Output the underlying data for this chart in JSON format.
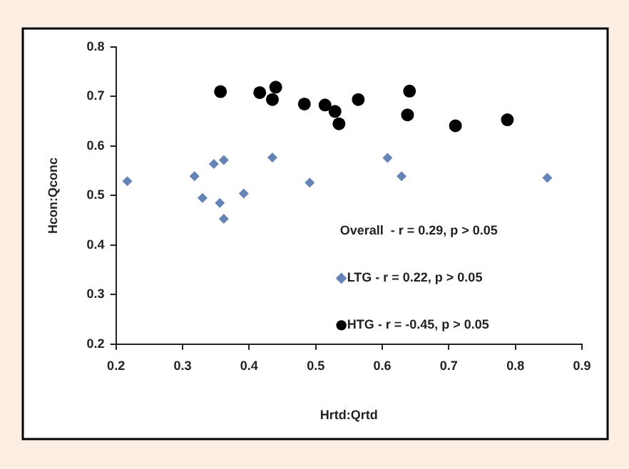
{
  "chart_data": {
    "type": "scatter",
    "xlabel": "Hrtd:Qrtd",
    "ylabel": "Hcon:Qconc",
    "xlim": [
      0.2,
      0.9
    ],
    "xticks": [
      0.2,
      0.3,
      0.4,
      0.5,
      0.6,
      0.7,
      0.8,
      0.9
    ],
    "ylim": [
      0.2,
      0.8
    ],
    "yticks": [
      0.2,
      0.3,
      0.4,
      0.5,
      0.6,
      0.7,
      0.8
    ],
    "grid": false,
    "legend": "bottom right",
    "annotations": [
      "Overall  - r = 0.29, p > 0.05"
    ],
    "series": [
      {
        "name": "LTG - r = 0.22, p > 0.05",
        "color": "#6683b5",
        "marker": "diamond",
        "x": [
          0.217,
          0.318,
          0.33,
          0.347,
          0.362,
          0.356,
          0.362,
          0.392,
          0.435,
          0.491,
          0.608,
          0.629,
          0.848
        ],
        "values": [
          0.529,
          0.539,
          0.495,
          0.564,
          0.572,
          0.485,
          0.453,
          0.504,
          0.577,
          0.526,
          0.576,
          0.539,
          0.536
        ]
      },
      {
        "name": "HTG - r = -0.45, p > 0.05",
        "color": "#000000",
        "marker": "circle",
        "x": [
          0.357,
          0.416,
          0.435,
          0.44,
          0.483,
          0.514,
          0.529,
          0.535,
          0.564,
          0.641,
          0.638,
          0.71,
          0.788
        ],
        "values": [
          0.71,
          0.708,
          0.694,
          0.719,
          0.685,
          0.683,
          0.67,
          0.645,
          0.694,
          0.711,
          0.663,
          0.641,
          0.653
        ]
      }
    ]
  }
}
